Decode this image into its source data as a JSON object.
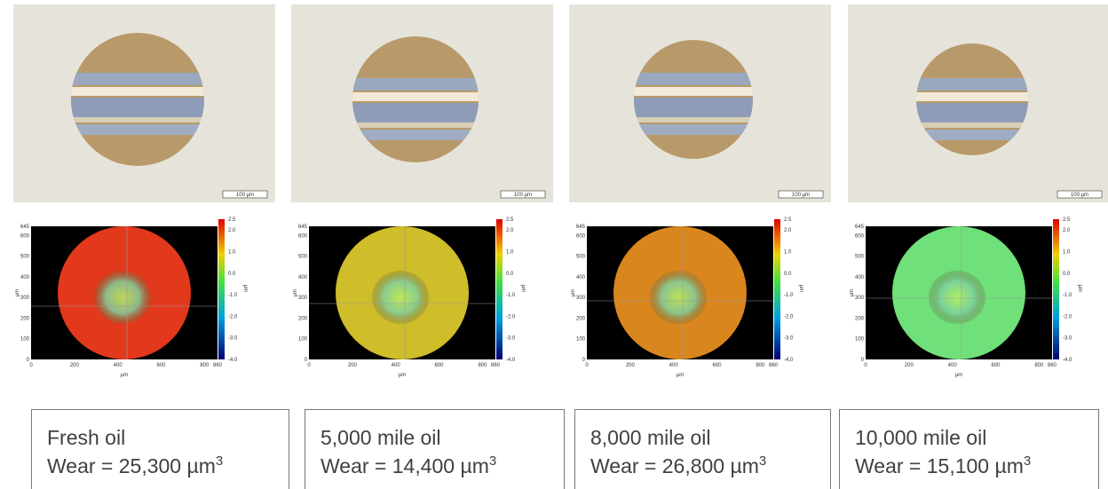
{
  "panels": [
    {
      "title": "Fresh oil",
      "wear": "Wear = 25,300 µm",
      "exponent": "3",
      "scale_bar": "100 µm",
      "disc_color": "#e2391c"
    },
    {
      "title": "5,000 mile oil",
      "wear": "Wear = 14,400 µm",
      "exponent": "3",
      "scale_bar": "100 µm",
      "disc_color": "#cfbd2a"
    },
    {
      "title": "8,000 mile oil",
      "wear": "Wear = 26,800 µm",
      "exponent": "3",
      "scale_bar": "100 µm",
      "disc_color": "#d9861e"
    },
    {
      "title": "10,000 mile oil",
      "wear": "Wear = 15,100 µm",
      "exponent": "3",
      "scale_bar": "100 µm",
      "disc_color": "#6fe07a"
    }
  ],
  "heatmap": {
    "y_ticks": [
      "0",
      "100",
      "200",
      "300",
      "400",
      "500",
      "600",
      "645"
    ],
    "x_ticks": [
      "0",
      "200",
      "400",
      "600",
      "800",
      "860"
    ],
    "x_label": "µm",
    "y_label": "µm",
    "colorbar_ticks": [
      "2.5",
      "2.0",
      "1.0",
      "0.0",
      "-1.0",
      "-2.0",
      "-3.0",
      "-4.0"
    ],
    "colorbar_label": "µm"
  }
}
